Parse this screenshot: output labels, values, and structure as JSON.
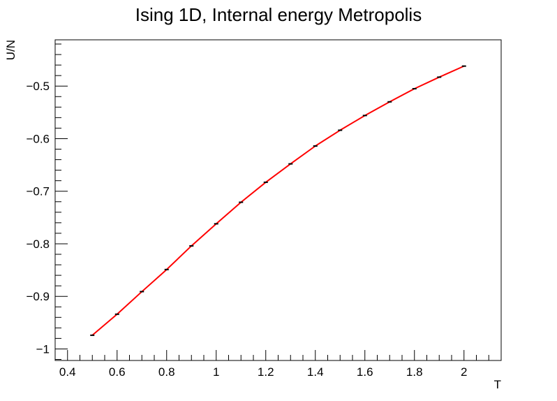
{
  "chart_data": {
    "type": "line",
    "title": "Ising 1D, Internal energy Metropolis",
    "xlabel": "T",
    "ylabel": "U/N",
    "xlim": [
      0.35,
      2.15
    ],
    "ylim": [
      -1.022,
      -0.412
    ],
    "xticks": [
      0.4,
      0.6,
      0.8,
      1,
      1.2,
      1.4,
      1.6,
      1.8,
      2
    ],
    "xtick_labels": [
      "0.4",
      "0.6",
      "0.8",
      "1",
      "1.2",
      "1.4",
      "1.6",
      "1.8",
      "2"
    ],
    "yticks": [
      -1,
      -0.9,
      -0.8,
      -0.7,
      -0.6,
      -0.5
    ],
    "ytick_labels": [
      "−1",
      "−0.9",
      "−0.8",
      "−0.7",
      "−0.6",
      "−0.5"
    ],
    "grid": false,
    "series": [
      {
        "color": "#ff0000",
        "x": [
          0.5,
          0.6,
          0.7,
          0.8,
          0.9,
          1.0,
          1.1,
          1.2,
          1.3,
          1.4,
          1.5,
          1.6,
          1.7,
          1.8,
          1.9,
          2.0
        ],
        "y": [
          -0.974,
          -0.934,
          -0.891,
          -0.849,
          -0.804,
          -0.762,
          -0.721,
          -0.683,
          -0.648,
          -0.614,
          -0.584,
          -0.556,
          -0.53,
          -0.505,
          -0.483,
          -0.462
        ]
      }
    ],
    "markers": {
      "color": "#000000",
      "x": [
        0.5,
        0.6,
        0.7,
        0.8,
        0.9,
        1.0,
        1.1,
        1.2,
        1.3,
        1.4,
        1.5,
        1.6,
        1.7,
        1.8,
        1.9,
        2.0
      ],
      "y": [
        -0.974,
        -0.934,
        -0.891,
        -0.849,
        -0.804,
        -0.762,
        -0.721,
        -0.683,
        -0.648,
        -0.614,
        -0.584,
        -0.556,
        -0.53,
        -0.505,
        -0.483,
        -0.462
      ]
    }
  }
}
